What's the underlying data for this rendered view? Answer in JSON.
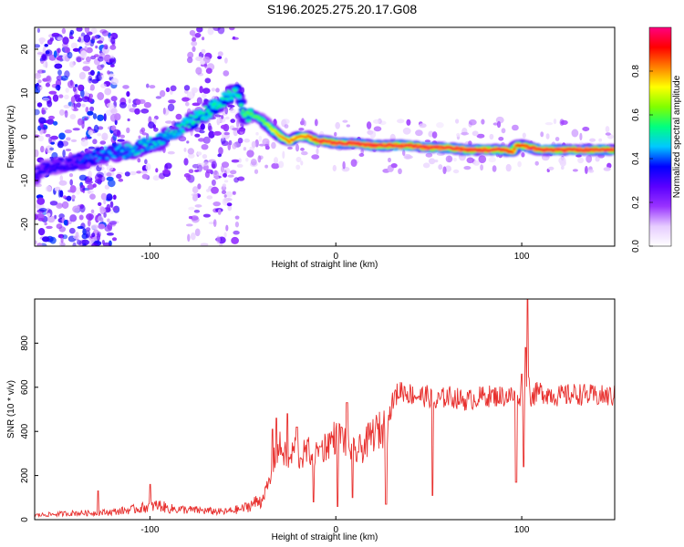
{
  "title": "S196.2025.275.20.17.G08",
  "chart_data": [
    {
      "type": "heatmap",
      "name": "spectrogram",
      "xlabel": "Height of straight line (km)",
      "ylabel": "Frequency (Hz)",
      "xlim": [
        -162,
        150
      ],
      "ylim": [
        -25,
        25
      ],
      "xticks": [
        -100,
        0,
        100
      ],
      "yticks": [
        -20,
        -10,
        0,
        10,
        20
      ],
      "grid": false,
      "colorbar": {
        "label": "Normalized spectral amplitude",
        "range": [
          0.0,
          1.0
        ],
        "ticks": [
          "0.0",
          "0.2",
          "0.4",
          "0.6",
          "0.8"
        ],
        "colors": [
          "#ffffff",
          "#e6ccff",
          "#9933ff",
          "#5a00ff",
          "#0000ff",
          "#00c8ff",
          "#00ff80",
          "#80ff00",
          "#ffff00",
          "#ff8000",
          "#ff0000",
          "#ff0080"
        ]
      },
      "ridge": {
        "x": [
          -162,
          -155,
          -145,
          -135,
          -125,
          -118,
          -110,
          -103,
          -95,
          -88,
          -80,
          -72,
          -65,
          -60,
          -55,
          -52,
          -50,
          -45,
          -40,
          -35,
          -30,
          -25,
          -20,
          -15,
          -10,
          -5,
          0,
          10,
          20,
          30,
          40,
          50,
          60,
          70,
          80,
          90,
          95,
          97,
          100,
          105,
          110,
          120,
          130,
          140,
          150
        ],
        "y": [
          -9,
          -7,
          -6,
          -5.5,
          -4,
          -3.5,
          -3,
          -2,
          -1,
          1,
          3,
          5,
          7,
          8.5,
          10,
          10,
          5,
          5,
          4,
          2,
          0,
          -1,
          0,
          0,
          -1,
          -1,
          -1.5,
          -1.5,
          -2,
          -2,
          -2,
          -2.5,
          -2.5,
          -3,
          -3,
          -3,
          -3.5,
          -2,
          -2,
          -2.5,
          -3,
          -3,
          -3,
          -3,
          -3
        ],
        "amplitude": [
          0.35,
          0.35,
          0.35,
          0.4,
          0.45,
          0.45,
          0.5,
          0.5,
          0.5,
          0.5,
          0.55,
          0.55,
          0.55,
          0.55,
          0.55,
          0.55,
          0.6,
          0.6,
          0.6,
          0.7,
          0.8,
          0.85,
          0.85,
          0.85,
          0.95,
          0.95,
          0.95,
          0.95,
          0.95,
          0.95,
          0.95,
          0.95,
          0.95,
          0.95,
          0.95,
          0.95,
          0.9,
          0.9,
          0.9,
          0.95,
          0.95,
          0.95,
          0.95,
          0.95,
          0.95
        ]
      }
    },
    {
      "type": "line",
      "name": "snr",
      "xlabel": "Height of straight line (km)",
      "ylabel": "SNR (10 * v/v)",
      "xlim": [
        -162,
        150
      ],
      "ylim": [
        0,
        1000
      ],
      "xticks": [
        -100,
        0,
        100
      ],
      "yticks": [
        0,
        200,
        400,
        600,
        800
      ],
      "grid": false,
      "series": [
        {
          "name": "SNR",
          "color": "#e8312f",
          "x": [
            -162,
            -150,
            -140,
            -130,
            -120,
            -110,
            -100,
            -95,
            -90,
            -80,
            -70,
            -60,
            -50,
            -45,
            -40,
            -35,
            -33,
            -30,
            -25,
            -22,
            -20,
            -15,
            -10,
            -5,
            0,
            5,
            10,
            15,
            20,
            25,
            28,
            30,
            32,
            35,
            40,
            45,
            50,
            54,
            55,
            60,
            70,
            80,
            90,
            100,
            102,
            103,
            105,
            110,
            120,
            130,
            140,
            150
          ],
          "y": [
            20,
            25,
            30,
            30,
            35,
            45,
            60,
            65,
            50,
            45,
            40,
            35,
            50,
            70,
            90,
            180,
            280,
            330,
            260,
            330,
            280,
            310,
            300,
            340,
            380,
            360,
            300,
            330,
            390,
            410,
            440,
            520,
            560,
            590,
            570,
            560,
            560,
            520,
            540,
            560,
            540,
            560,
            560,
            560,
            600,
            650,
            560,
            580,
            560,
            570,
            560,
            560
          ],
          "spikes": [
            {
              "x": -128,
              "y": 130
            },
            {
              "x": -100,
              "y": 160
            },
            {
              "x": -34,
              "y": 410
            },
            {
              "x": -32,
              "y": 460
            },
            {
              "x": -26,
              "y": 480
            },
            {
              "x": -21,
              "y": 420
            },
            {
              "x": -12,
              "y": 80
            },
            {
              "x": -8,
              "y": 330
            },
            {
              "x": 1,
              "y": 60
            },
            {
              "x": 3,
              "y": 420
            },
            {
              "x": 6,
              "y": 530
            },
            {
              "x": 9,
              "y": 100
            },
            {
              "x": 27,
              "y": 70
            },
            {
              "x": 52,
              "y": 110
            },
            {
              "x": 97,
              "y": 170
            },
            {
              "x": 100,
              "y": 660
            },
            {
              "x": 101,
              "y": 240
            },
            {
              "x": 102,
              "y": 780
            },
            {
              "x": 103,
              "y": 1000
            }
          ]
        }
      ]
    }
  ]
}
